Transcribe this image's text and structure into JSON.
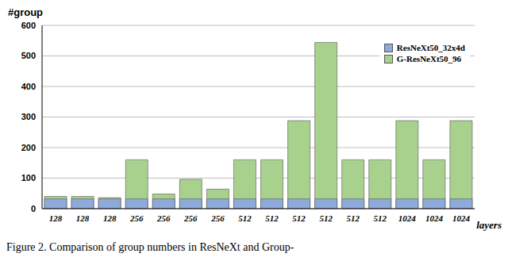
{
  "chart_data": {
    "type": "bar",
    "y_label": "#group",
    "x_label": "layers",
    "caption": "Figure 2. Comparison of group numbers in ResNeXt and Group-",
    "categories": [
      "128",
      "128",
      "128",
      "256",
      "256",
      "256",
      "256",
      "512",
      "512",
      "512",
      "512",
      "512",
      "512",
      "1024",
      "1024",
      "1024"
    ],
    "series": [
      {
        "name": "ResNeXt50_32x4d",
        "color": "#8eaadb",
        "values": [
          32,
          32,
          32,
          32,
          32,
          32,
          32,
          32,
          32,
          32,
          32,
          32,
          32,
          32,
          32,
          32
        ]
      },
      {
        "name": "G-ResNeXt50_96",
        "color": "#a9d18e",
        "values": [
          40,
          40,
          36,
          160,
          48,
          96,
          64,
          160,
          160,
          288,
          544,
          160,
          160,
          288,
          160,
          288
        ]
      }
    ],
    "ylim": [
      0,
      600
    ],
    "yticks": [
      0,
      100,
      200,
      300,
      400,
      500,
      600
    ],
    "grid": true,
    "legend": "top-right"
  }
}
